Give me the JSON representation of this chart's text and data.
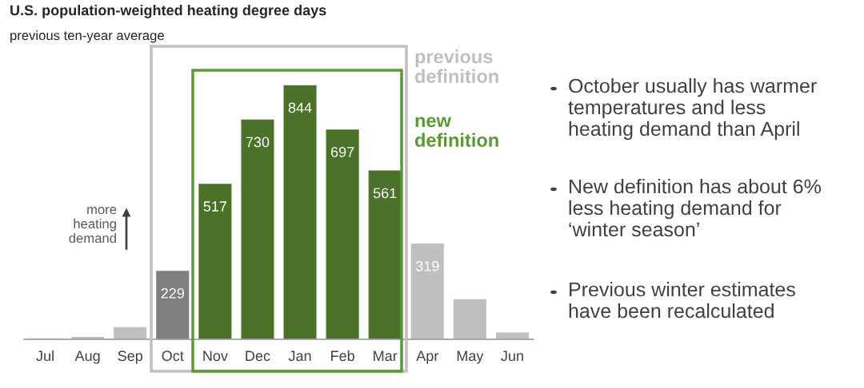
{
  "chart_data": {
    "type": "bar",
    "title": "U.S. population-weighted heating degree days",
    "subtitle": "previous ten-year average",
    "categories": [
      "Jul",
      "Aug",
      "Sep",
      "Oct",
      "Nov",
      "Dec",
      "Jan",
      "Feb",
      "Mar",
      "Apr",
      "May",
      "Jun"
    ],
    "values": [
      5,
      10,
      42,
      229,
      517,
      730,
      844,
      697,
      561,
      319,
      135,
      24
    ],
    "colors": [
      "#bfbfbf",
      "#bfbfbf",
      "#bfbfbf",
      "#7f7f7f",
      "#4a7228",
      "#4a7228",
      "#4a7228",
      "#4a7228",
      "#4a7228",
      "#bfbfbf",
      "#bfbfbf",
      "#bfbfbf"
    ],
    "value_labels": [
      null,
      null,
      null,
      "229",
      "517",
      "730",
      "844",
      "697",
      "561",
      "319",
      null,
      null
    ],
    "annotations": [
      "previous\ndefinition",
      "new\ndefinition",
      "more\nheating\ndemand",
      "October usually has warmer\ntemperatures and less\nheating demand than April",
      "New definition has about 6%\nless heating demand for\n‘winter season’",
      "Previous winter estimates\nhave been recalculated"
    ],
    "tick_labels": "x",
    "grid": false,
    "legend": false
  }
}
